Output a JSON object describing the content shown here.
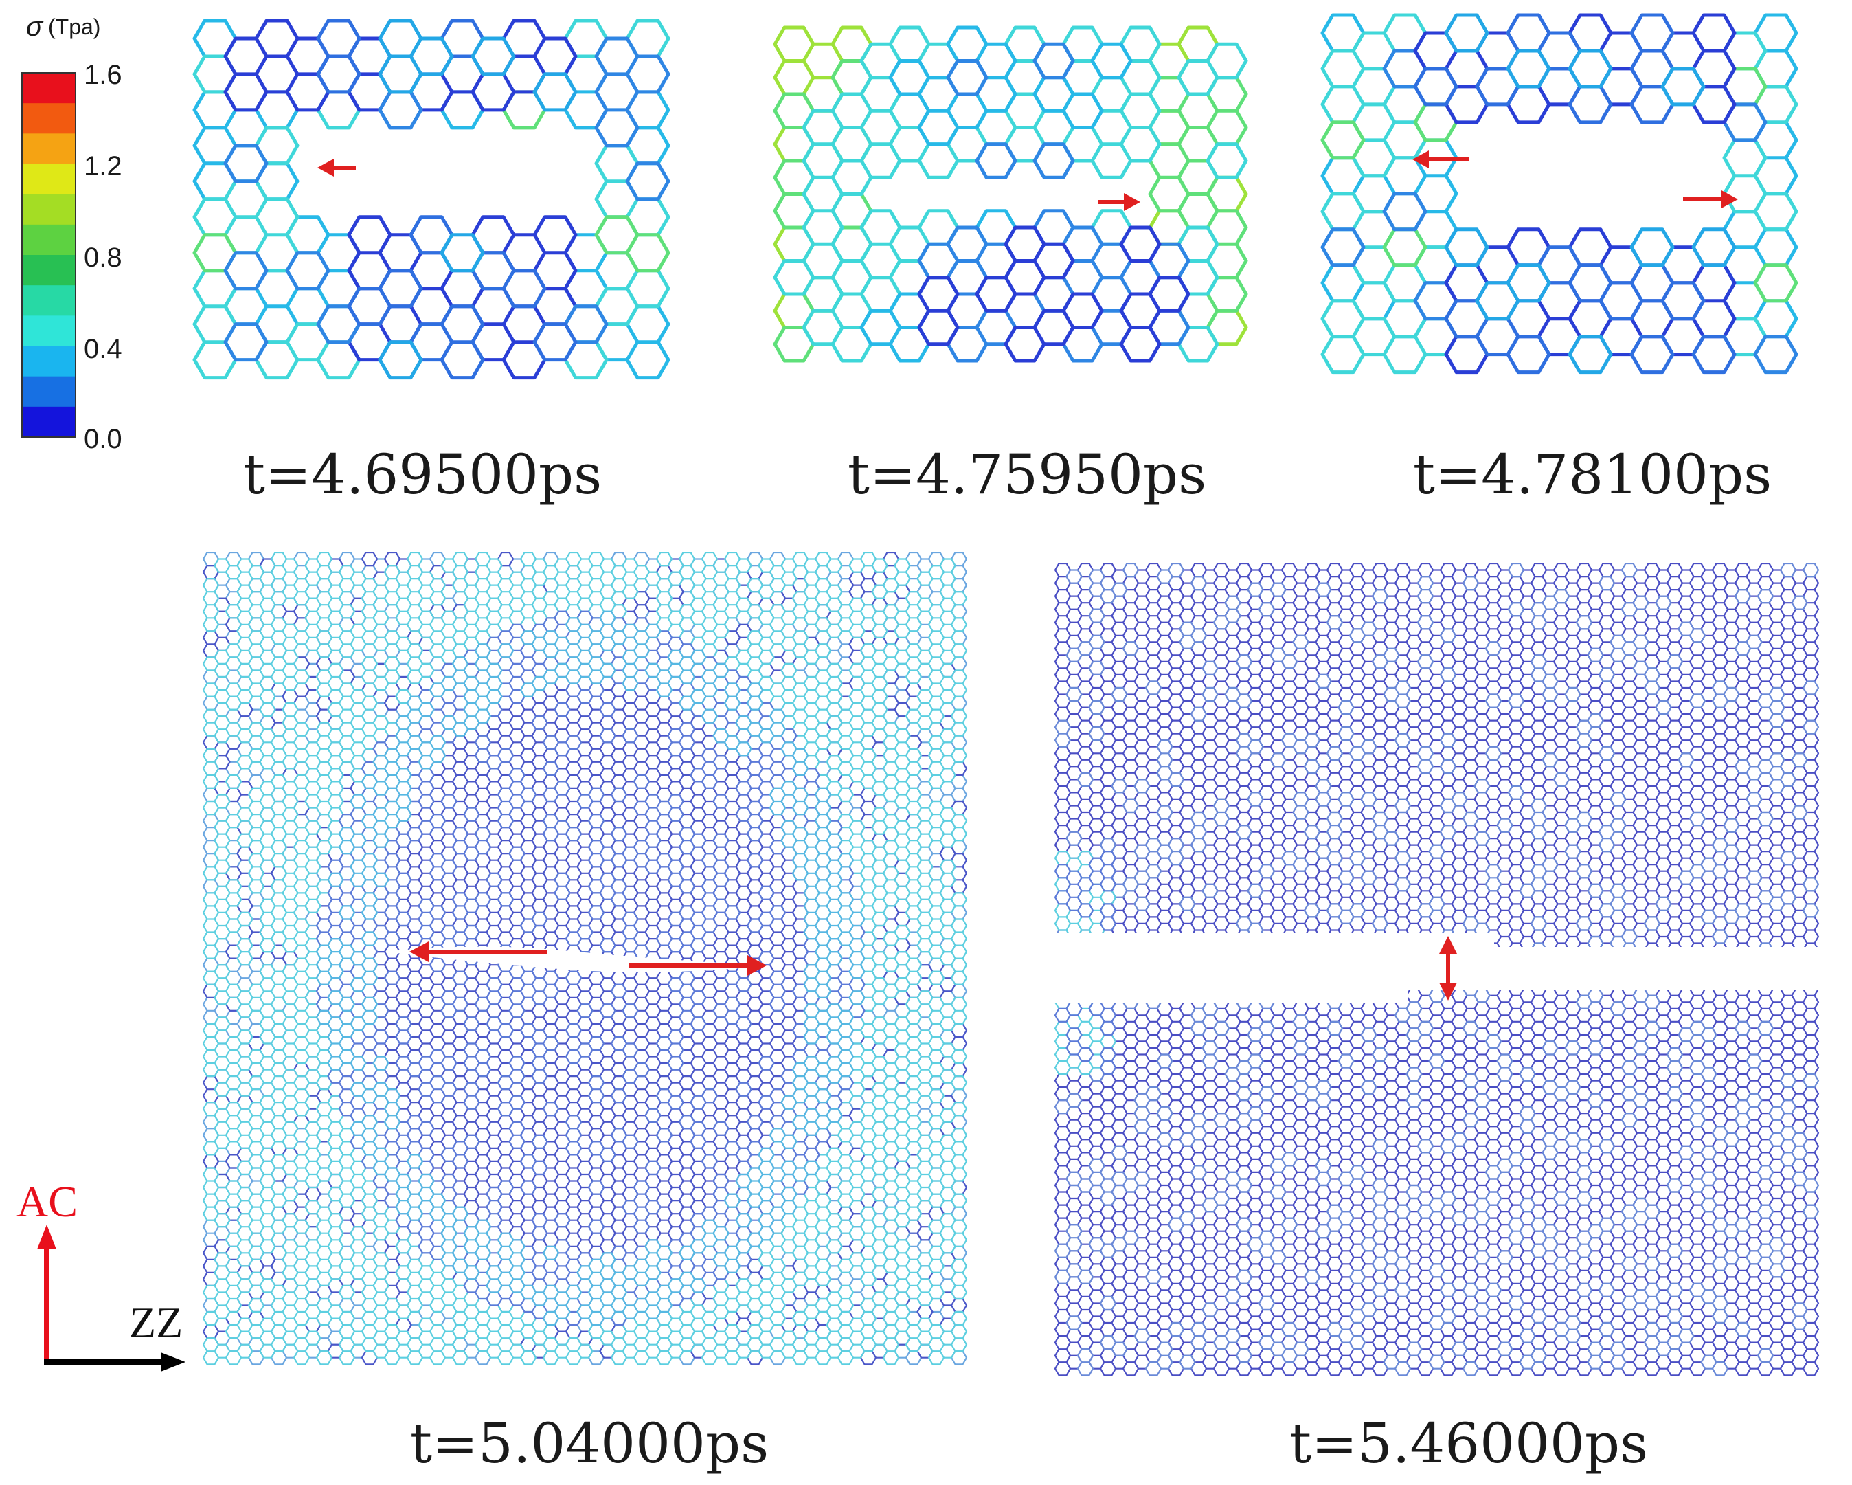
{
  "colorbar": {
    "symbol": "σ",
    "unit": "(Tpa)",
    "ticks": [
      "1.6",
      "1.2",
      "0.8",
      "0.4",
      "0.0"
    ],
    "colors": [
      "#e8101c",
      "#f25a10",
      "#f5a313",
      "#dfe817",
      "#a4dd24",
      "#5dd241",
      "#28c053",
      "#27d9a5",
      "#2fe5d8",
      "#1ab5ef",
      "#1770e3",
      "#1414dc"
    ]
  },
  "panels": [
    {
      "id": "a",
      "caption": "t=4.69500ps"
    },
    {
      "id": "b",
      "caption": "t=4.75950ps"
    },
    {
      "id": "c",
      "caption": "t=4.78100ps"
    },
    {
      "id": "d",
      "caption": "t=5.04000ps"
    },
    {
      "id": "e",
      "caption": "t=5.46000ps"
    }
  ],
  "axes": {
    "vertical_label": "AC",
    "horizontal_label": "ZZ",
    "vertical_color": "#e8101c",
    "horizontal_color": "#000000"
  },
  "arrow_color": "#e02020"
}
